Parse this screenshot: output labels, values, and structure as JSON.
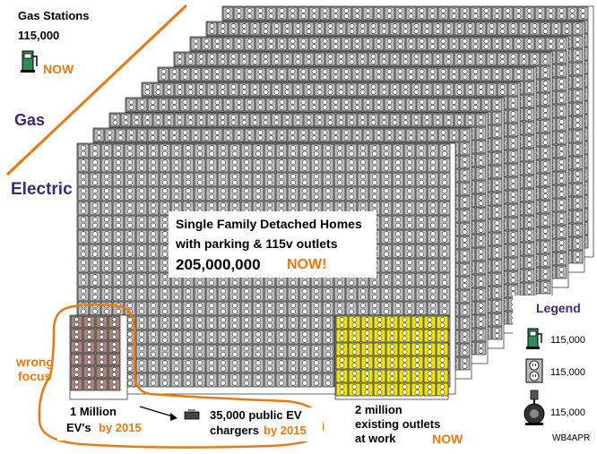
{
  "gas": {
    "title": "Gas Stations",
    "count": "115,000",
    "now_label": "NOW",
    "side_label": "Gas"
  },
  "electric": {
    "side_label": "Electric"
  },
  "homes": {
    "line1": "Single Family Detached Homes",
    "line2": "with parking & 115v outlets",
    "count": "205,000,000",
    "now_label": "NOW!"
  },
  "wrong_focus": {
    "line1": "wrong",
    "line2": "focus"
  },
  "evs": {
    "line1": "1 Million",
    "line2_prefix": "EV's",
    "line2_suffix": "by 2015"
  },
  "public_chargers": {
    "line1": "35,000 public EV",
    "line2_prefix": "chargers",
    "line2_suffix": "by 2015"
  },
  "work_outlets": {
    "line1": "2 million",
    "line2": "existing outlets",
    "line3_prefix": "at work",
    "line3_suffix": "NOW"
  },
  "legend": {
    "title": "Legend",
    "items": [
      {
        "icon": "gas-pump-icon",
        "value": "115,000"
      },
      {
        "icon": "outlet-icon",
        "value": "115,000"
      },
      {
        "icon": "ev-charger-icon",
        "value": "115,000"
      }
    ]
  },
  "credit": "WB4APR",
  "colors": {
    "outlet_gray": "#bcbcbc",
    "work_yellow": "#f2e600",
    "wrong_brown": "#a8847a",
    "accent_orange": "#e87a10",
    "label_purple": "#3a2a7a"
  }
}
